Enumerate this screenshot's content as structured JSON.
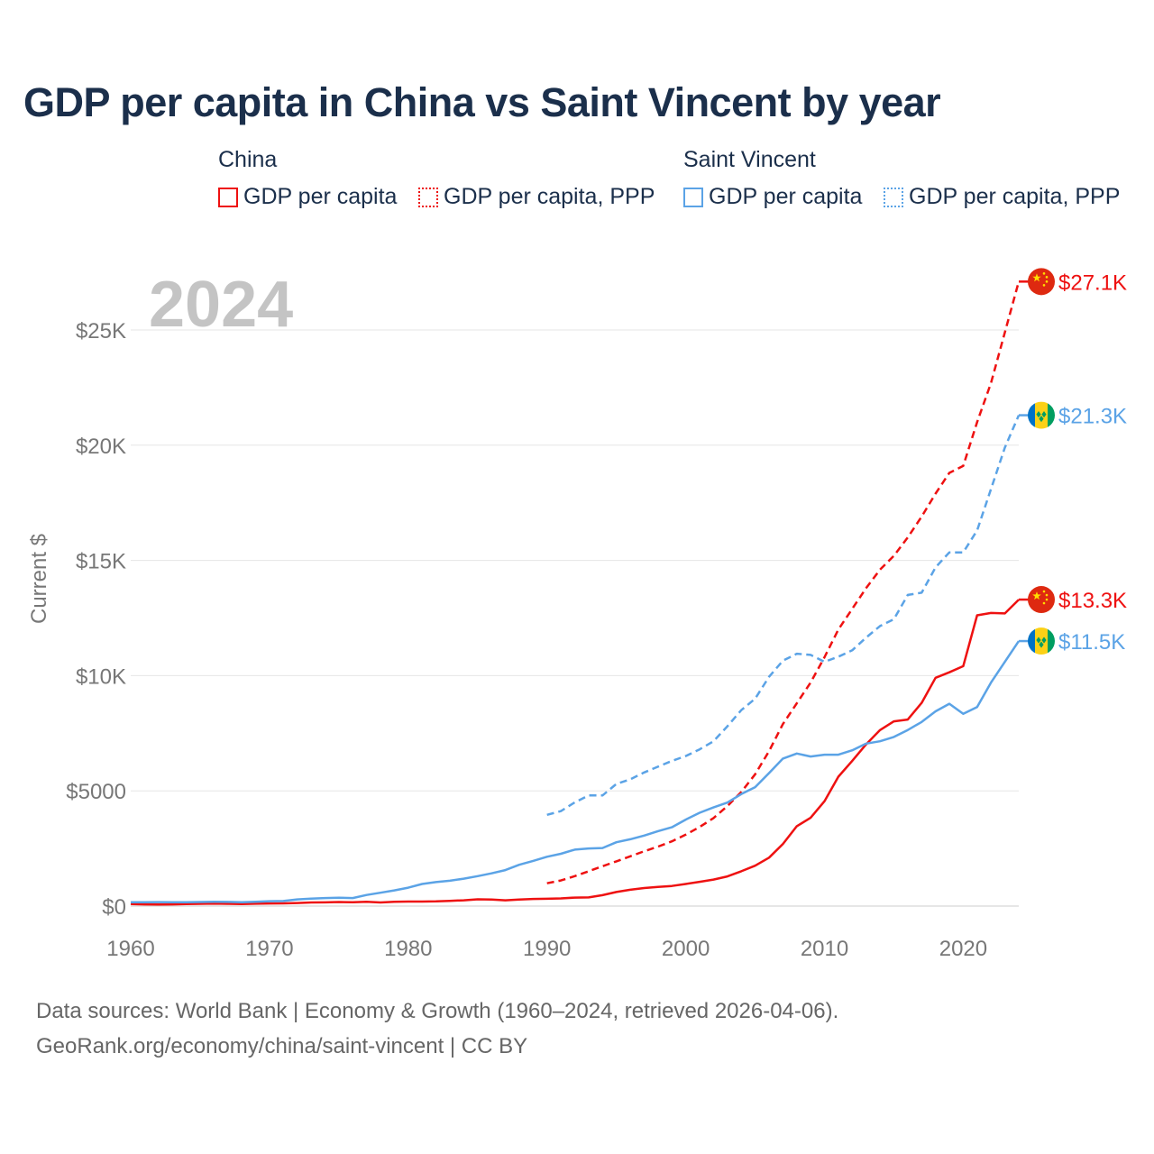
{
  "title": "GDP per capita in China vs Saint Vincent by year",
  "legend": {
    "groups": [
      {
        "name": "China",
        "items": [
          {
            "label": "GDP per capita",
            "style": "solid",
            "color": "#ee1111"
          },
          {
            "label": "GDP per capita, PPP",
            "style": "dotted",
            "color": "#ee1111"
          }
        ]
      },
      {
        "name": "Saint Vincent",
        "items": [
          {
            "label": "GDP per capita",
            "style": "solid",
            "color": "#5ba3e6"
          },
          {
            "label": "GDP per capita, PPP",
            "style": "dotted",
            "color": "#5ba3e6"
          }
        ]
      }
    ]
  },
  "footer": {
    "line1": "Data sources: World Bank | Economy & Growth (1960–2024, retrieved 2026-04-06).",
    "line2": "GeoRank.org/economy/china/saint-vincent | CC BY"
  },
  "chart_data": {
    "type": "line",
    "title": "GDP per capita in China vs Saint Vincent by year",
    "watermark_year": "2024",
    "ylabel": "Current $",
    "xlabel": "",
    "xlim": [
      1960,
      2024
    ],
    "ylim": [
      0,
      27500
    ],
    "x_ticks": [
      1960,
      1970,
      1980,
      1990,
      2000,
      2010,
      2020
    ],
    "y_ticks": [
      {
        "value": 0,
        "label": "$0"
      },
      {
        "value": 5000,
        "label": "$5000"
      },
      {
        "value": 10000,
        "label": "$10K"
      },
      {
        "value": 15000,
        "label": "$15K"
      },
      {
        "value": 20000,
        "label": "$20K"
      },
      {
        "value": 25000,
        "label": "$25K"
      }
    ],
    "grid": true,
    "series": [
      {
        "name": "China GDP per capita",
        "color": "#ee1111",
        "dash": "solid",
        "end_label": "$13.3K",
        "points": [
          [
            1960,
            90
          ],
          [
            1961,
            76
          ],
          [
            1962,
            70
          ],
          [
            1963,
            74
          ],
          [
            1964,
            85
          ],
          [
            1965,
            98
          ],
          [
            1966,
            104
          ],
          [
            1967,
            96
          ],
          [
            1968,
            91
          ],
          [
            1969,
            100
          ],
          [
            1970,
            113
          ],
          [
            1971,
            119
          ],
          [
            1972,
            132
          ],
          [
            1973,
            157
          ],
          [
            1974,
            160
          ],
          [
            1975,
            178
          ],
          [
            1976,
            165
          ],
          [
            1977,
            185
          ],
          [
            1978,
            156
          ],
          [
            1979,
            184
          ],
          [
            1980,
            195
          ],
          [
            1981,
            197
          ],
          [
            1982,
            203
          ],
          [
            1983,
            225
          ],
          [
            1984,
            250
          ],
          [
            1985,
            294
          ],
          [
            1986,
            282
          ],
          [
            1987,
            252
          ],
          [
            1988,
            284
          ],
          [
            1989,
            311
          ],
          [
            1990,
            318
          ],
          [
            1991,
            333
          ],
          [
            1992,
            366
          ],
          [
            1993,
            377
          ],
          [
            1994,
            473
          ],
          [
            1995,
            610
          ],
          [
            1996,
            709
          ],
          [
            1997,
            782
          ],
          [
            1998,
            829
          ],
          [
            1999,
            873
          ],
          [
            2000,
            959
          ],
          [
            2001,
            1053
          ],
          [
            2002,
            1149
          ],
          [
            2003,
            1289
          ],
          [
            2004,
            1509
          ],
          [
            2005,
            1753
          ],
          [
            2006,
            2099
          ],
          [
            2007,
            2694
          ],
          [
            2008,
            3468
          ],
          [
            2009,
            3832
          ],
          [
            2010,
            4550
          ],
          [
            2011,
            5614
          ],
          [
            2012,
            6301
          ],
          [
            2013,
            7020
          ],
          [
            2014,
            7636
          ],
          [
            2015,
            8016
          ],
          [
            2016,
            8094
          ],
          [
            2017,
            8817
          ],
          [
            2018,
            9905
          ],
          [
            2019,
            10144
          ],
          [
            2020,
            10409
          ],
          [
            2021,
            12618
          ],
          [
            2022,
            12720
          ],
          [
            2023,
            12700
          ],
          [
            2024,
            13300
          ]
        ]
      },
      {
        "name": "China GDP per capita, PPP",
        "color": "#ee1111",
        "dash": "dashed",
        "end_label": "$27.1K",
        "points": [
          [
            1990,
            990
          ],
          [
            1991,
            1110
          ],
          [
            1992,
            1300
          ],
          [
            1993,
            1510
          ],
          [
            1994,
            1730
          ],
          [
            1995,
            1940
          ],
          [
            1996,
            2160
          ],
          [
            1997,
            2380
          ],
          [
            1998,
            2580
          ],
          [
            1999,
            2810
          ],
          [
            2000,
            3100
          ],
          [
            2001,
            3430
          ],
          [
            2002,
            3820
          ],
          [
            2003,
            4340
          ],
          [
            2004,
            4950
          ],
          [
            2005,
            5720
          ],
          [
            2006,
            6720
          ],
          [
            2007,
            7900
          ],
          [
            2008,
            8800
          ],
          [
            2009,
            9700
          ],
          [
            2010,
            10800
          ],
          [
            2011,
            12000
          ],
          [
            2012,
            12900
          ],
          [
            2013,
            13800
          ],
          [
            2014,
            14600
          ],
          [
            2015,
            15200
          ],
          [
            2016,
            16000
          ],
          [
            2017,
            16900
          ],
          [
            2018,
            17900
          ],
          [
            2019,
            18800
          ],
          [
            2020,
            19100
          ],
          [
            2021,
            21000
          ],
          [
            2022,
            22700
          ],
          [
            2023,
            24900
          ],
          [
            2024,
            27100
          ]
        ]
      },
      {
        "name": "Saint Vincent GDP per capita",
        "color": "#5ba3e6",
        "dash": "solid",
        "end_label": "$11.5K",
        "points": [
          [
            1960,
            165
          ],
          [
            1961,
            170
          ],
          [
            1962,
            172
          ],
          [
            1963,
            165
          ],
          [
            1964,
            170
          ],
          [
            1965,
            175
          ],
          [
            1966,
            185
          ],
          [
            1967,
            180
          ],
          [
            1968,
            170
          ],
          [
            1969,
            185
          ],
          [
            1970,
            210
          ],
          [
            1971,
            220
          ],
          [
            1972,
            290
          ],
          [
            1973,
            320
          ],
          [
            1974,
            350
          ],
          [
            1975,
            360
          ],
          [
            1976,
            350
          ],
          [
            1977,
            480
          ],
          [
            1978,
            580
          ],
          [
            1979,
            680
          ],
          [
            1980,
            800
          ],
          [
            1981,
            960
          ],
          [
            1982,
            1040
          ],
          [
            1983,
            1100
          ],
          [
            1984,
            1190
          ],
          [
            1985,
            1300
          ],
          [
            1986,
            1420
          ],
          [
            1987,
            1560
          ],
          [
            1988,
            1790
          ],
          [
            1989,
            1960
          ],
          [
            1990,
            2140
          ],
          [
            1991,
            2270
          ],
          [
            1992,
            2450
          ],
          [
            1993,
            2500
          ],
          [
            1994,
            2520
          ],
          [
            1995,
            2770
          ],
          [
            1996,
            2900
          ],
          [
            1997,
            3060
          ],
          [
            1998,
            3250
          ],
          [
            1999,
            3420
          ],
          [
            2000,
            3750
          ],
          [
            2001,
            4050
          ],
          [
            2002,
            4280
          ],
          [
            2003,
            4490
          ],
          [
            2004,
            4860
          ],
          [
            2005,
            5160
          ],
          [
            2006,
            5770
          ],
          [
            2007,
            6400
          ],
          [
            2008,
            6620
          ],
          [
            2009,
            6490
          ],
          [
            2010,
            6570
          ],
          [
            2011,
            6570
          ],
          [
            2012,
            6760
          ],
          [
            2013,
            7050
          ],
          [
            2014,
            7150
          ],
          [
            2015,
            7340
          ],
          [
            2016,
            7640
          ],
          [
            2017,
            7990
          ],
          [
            2018,
            8450
          ],
          [
            2019,
            8780
          ],
          [
            2020,
            8340
          ],
          [
            2021,
            8640
          ],
          [
            2022,
            9700
          ],
          [
            2023,
            10600
          ],
          [
            2024,
            11500
          ]
        ]
      },
      {
        "name": "Saint Vincent GDP per capita, PPP",
        "color": "#5ba3e6",
        "dash": "dashed",
        "end_label": "$21.3K",
        "points": [
          [
            1990,
            3960
          ],
          [
            1991,
            4120
          ],
          [
            1992,
            4500
          ],
          [
            1993,
            4800
          ],
          [
            1994,
            4800
          ],
          [
            1995,
            5300
          ],
          [
            1996,
            5500
          ],
          [
            1997,
            5800
          ],
          [
            1998,
            6050
          ],
          [
            1999,
            6300
          ],
          [
            2000,
            6510
          ],
          [
            2001,
            6800
          ],
          [
            2002,
            7150
          ],
          [
            2003,
            7800
          ],
          [
            2004,
            8500
          ],
          [
            2005,
            9000
          ],
          [
            2006,
            9950
          ],
          [
            2007,
            10650
          ],
          [
            2008,
            10950
          ],
          [
            2009,
            10900
          ],
          [
            2010,
            10600
          ],
          [
            2011,
            10820
          ],
          [
            2012,
            11100
          ],
          [
            2013,
            11650
          ],
          [
            2014,
            12150
          ],
          [
            2015,
            12450
          ],
          [
            2016,
            13500
          ],
          [
            2017,
            13600
          ],
          [
            2018,
            14700
          ],
          [
            2019,
            15350
          ],
          [
            2020,
            15350
          ],
          [
            2021,
            16300
          ],
          [
            2022,
            18100
          ],
          [
            2023,
            19900
          ],
          [
            2024,
            21300
          ]
        ]
      }
    ],
    "end_markers": [
      {
        "series": "China GDP per capita, PPP",
        "value": 27100,
        "label": "$27.1K",
        "flag": "china-flag-icon"
      },
      {
        "series": "Saint Vincent GDP per capita, PPP",
        "value": 21300,
        "label": "$21.3K",
        "flag": "saint-vincent-flag-icon"
      },
      {
        "series": "China GDP per capita",
        "value": 13300,
        "label": "$13.3K",
        "flag": "china-flag-icon"
      },
      {
        "series": "Saint Vincent GDP per capita",
        "value": 11500,
        "label": "$11.5K",
        "flag": "saint-vincent-flag-icon"
      }
    ]
  }
}
